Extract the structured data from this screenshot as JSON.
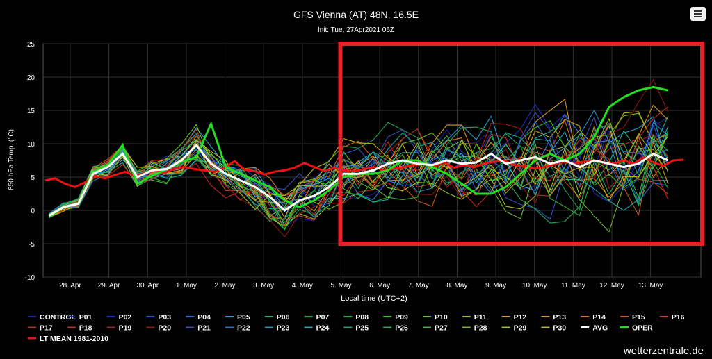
{
  "header": {
    "menu_icon": "hamburger-menu-icon"
  },
  "watermark": "wetterzentrale.de",
  "highlight": {
    "color": "#e8202a"
  },
  "chart_data": {
    "type": "line",
    "title": "GFS Vienna (AT) 48N, 16.5E",
    "subtitle": "Init: Tue, 27Apr2021 06Z",
    "xlabel": "Local time (UTC+2)",
    "ylabel": "850 hPa Temp. (°C)",
    "ylim": [
      -10,
      25
    ],
    "yticks": [
      -10,
      -5,
      0,
      5,
      10,
      15,
      20,
      25
    ],
    "x_unit": "days after 28. Apr 00:00 local time",
    "xlim": [
      -0.7,
      16.3
    ],
    "categories": [
      "28. Apr",
      "29. Apr",
      "30. Apr",
      "1. May",
      "2. May",
      "3. May",
      "4. May",
      "5. May",
      "6. May",
      "7. May",
      "8. May",
      "9. May",
      "10. May",
      "11. May",
      "12. May",
      "13. May"
    ],
    "grid": true,
    "legend_position": "bottom",
    "colors": {
      "CONTROL": "#1b2aa0",
      "P01": "#1a1a8f",
      "P02": "#1f2fc0",
      "P03": "#2a55c8",
      "P04": "#2f6fd8",
      "P05": "#26a0d0",
      "P06": "#22b08a",
      "P07": "#20a050",
      "P08": "#24b02c",
      "P09": "#3cc020",
      "P10": "#70c020",
      "P11": "#a8b820",
      "P12": "#c8a818",
      "P13": "#d89818",
      "P14": "#d87818",
      "P15": "#c85818",
      "P16": "#c84818",
      "P17": "#b83020",
      "P18": "#c82828",
      "P19": "#a82020",
      "P20": "#881818",
      "P21": "#3a4ab8",
      "P22": "#2a70c8",
      "P23": "#2590c8",
      "P24": "#20a8b0",
      "P25": "#20a080",
      "P26": "#28a858",
      "P27": "#40b040",
      "P28": "#70b830",
      "P29": "#98c028",
      "P30": "#c0b020",
      "AVG": "#ffffff",
      "OPER": "#22dd22",
      "LT MEAN 1981-2010": "#ee1111"
    },
    "oper": [
      -1.0,
      0.5,
      1.0,
      5.8,
      6.8,
      9.8,
      4.0,
      5.2,
      6.2,
      7.3,
      8.0,
      13.0,
      6.5,
      5.5,
      4.5,
      3.5,
      1.5,
      0.5,
      1.5,
      3.0,
      5.0,
      5.5,
      5.5,
      6.0,
      7.5,
      7.5,
      6.5,
      5.5,
      4.0,
      2.5,
      2.5,
      3.5,
      5.5,
      7.5,
      8.5,
      7.5,
      8.5,
      11.0,
      15.5,
      17.0,
      18.0,
      18.5,
      18.0
    ],
    "avg": [
      -0.8,
      0.5,
      1.0,
      5.5,
      6.5,
      8.5,
      5.0,
      6.0,
      6.2,
      7.5,
      9.8,
      7.0,
      5.5,
      4.5,
      3.5,
      2.0,
      0.0,
      1.5,
      2.2,
      3.5,
      5.5,
      5.5,
      6.0,
      7.0,
      7.5,
      7.0,
      6.8,
      7.5,
      7.0,
      7.2,
      8.5,
      7.0,
      7.5,
      8.0,
      7.0,
      7.5,
      6.5,
      7.5,
      7.0,
      6.5,
      7.0,
      8.5,
      7.5
    ],
    "lt_mean": [
      4.5,
      4.8,
      4.0,
      3.5,
      4.2,
      5.2,
      4.8,
      5.3,
      5.8,
      5.2,
      5.6,
      5.9,
      5.6,
      6.3,
      6.5,
      6.2,
      6.0,
      5.8,
      6.4,
      7.4,
      6.1,
      5.9,
      5.4,
      5.8,
      6.0,
      6.4,
      7.1,
      6.5,
      5.9,
      6.4,
      6.0,
      5.9,
      6.2,
      6.5,
      6.0,
      6.3,
      6.5,
      6.8,
      7.0,
      6.6,
      7.2,
      6.4,
      6.8,
      6.5,
      7.0,
      7.3,
      7.5,
      6.8,
      6.6,
      6.3,
      6.5,
      6.9,
      7.3,
      7.0,
      7.3,
      7.5,
      7.2,
      7.0,
      7.5,
      7.0,
      8.0,
      7.2,
      6.7,
      7.5,
      7.6
    ],
    "legend": [
      "CONTROL",
      "P01",
      "P02",
      "P03",
      "P04",
      "P05",
      "P06",
      "P07",
      "P08",
      "P09",
      "P10",
      "P11",
      "P12",
      "P13",
      "P14",
      "P15",
      "P16",
      "P17",
      "P18",
      "P19",
      "P20",
      "P21",
      "P22",
      "P23",
      "P24",
      "P25",
      "P26",
      "P27",
      "P28",
      "P29",
      "P30",
      "AVG",
      "OPER",
      "LT MEAN 1981-2010"
    ],
    "annotations": [
      "red rectangle highlighting 5. May to 13. May, -5 to 25 °C"
    ]
  }
}
